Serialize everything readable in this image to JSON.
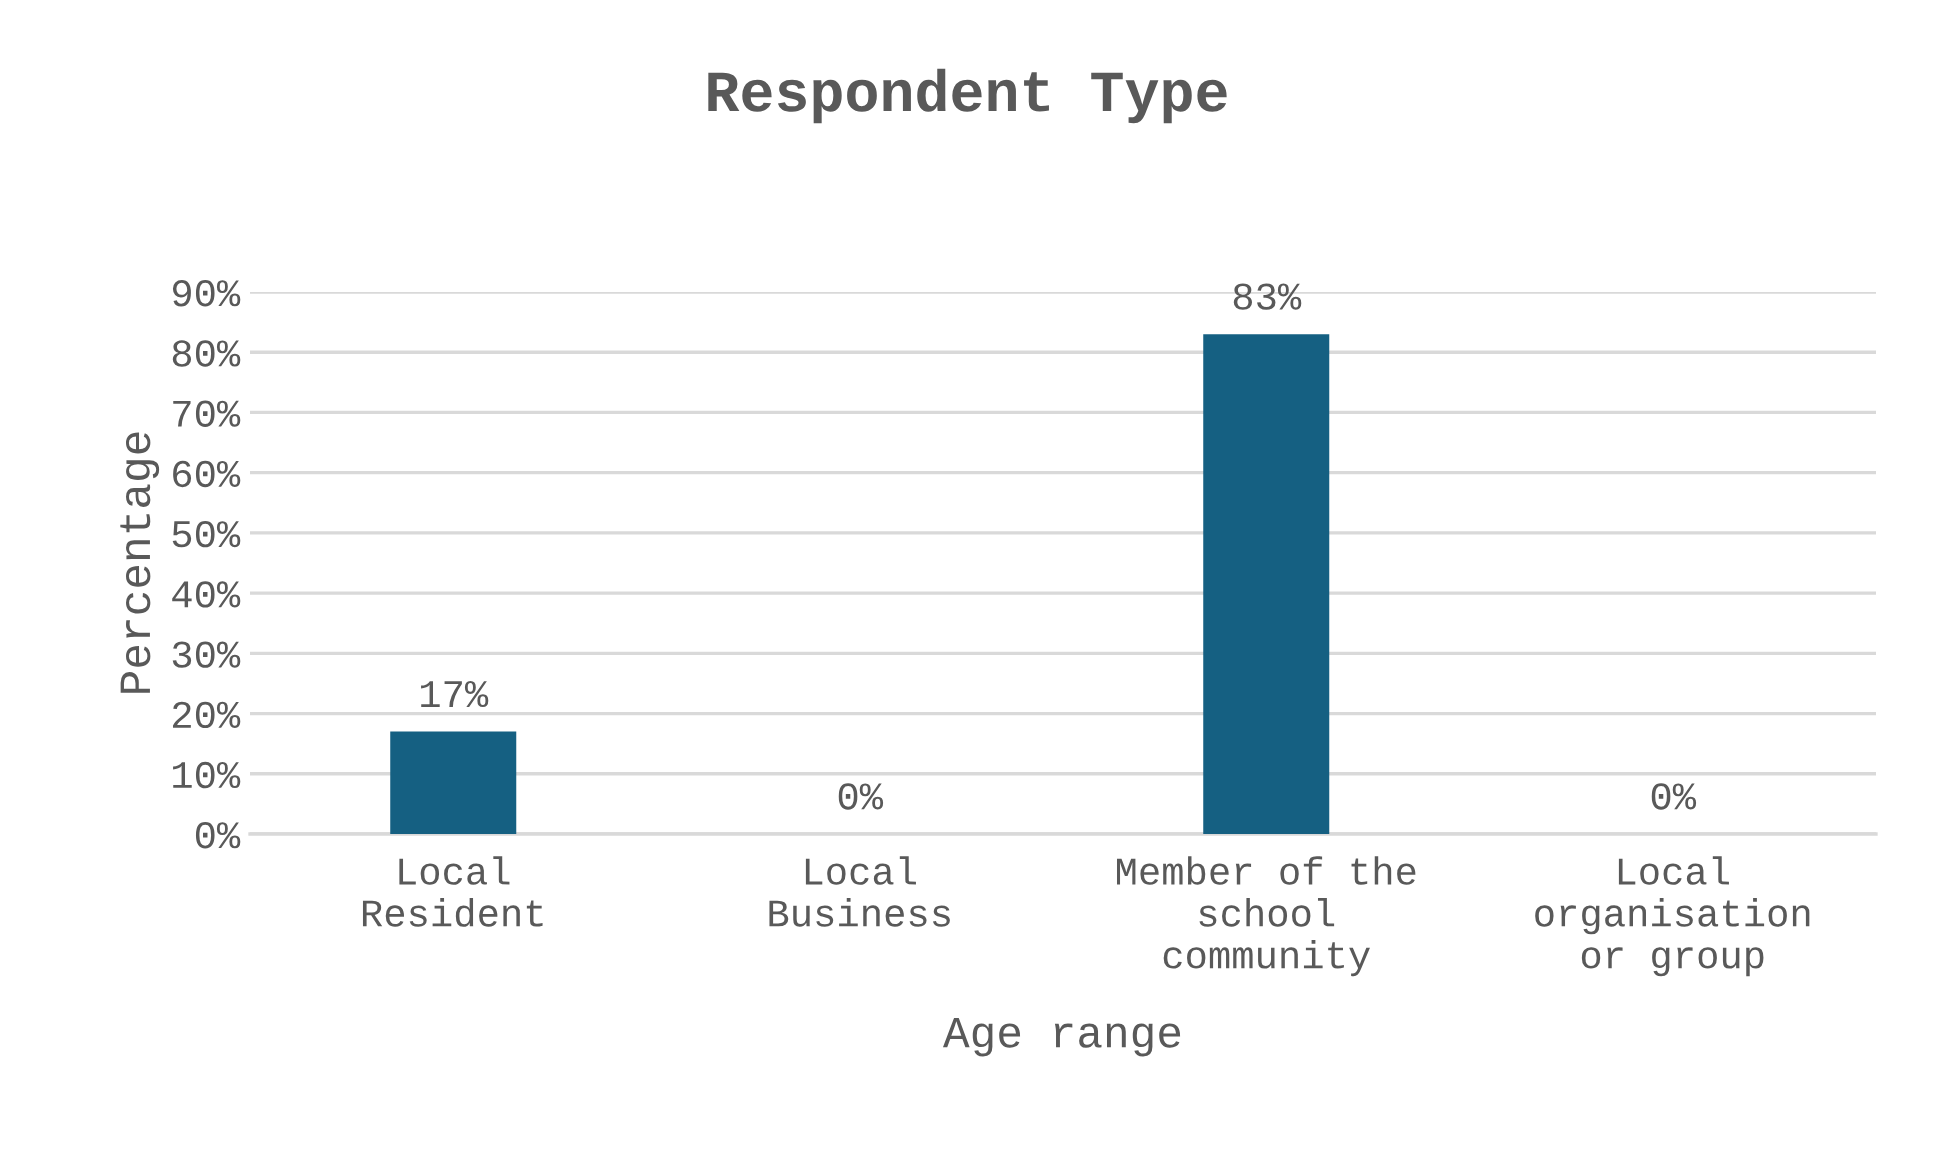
{
  "chart_data": {
    "type": "bar",
    "title": "Respondent Type",
    "xlabel": "Age range",
    "ylabel": "Percentage",
    "categories": [
      "Local\nResident",
      "Local\nBusiness",
      "Member of the\nschool\ncommunity",
      "Local\norganisation\nor group"
    ],
    "values": [
      17,
      0,
      83,
      0
    ],
    "color": "#156082",
    "value_labels": [
      "17%",
      "0%",
      "83%",
      "0%"
    ],
    "ylim": [
      0,
      90
    ],
    "yticks": [
      {
        "value": 0,
        "label": "0%"
      },
      {
        "value": 10,
        "label": "10%"
      },
      {
        "value": 20,
        "label": "20%"
      },
      {
        "value": 30,
        "label": "30%"
      },
      {
        "value": 40,
        "label": "40%"
      },
      {
        "value": 50,
        "label": "50%"
      },
      {
        "value": 60,
        "label": "60%"
      },
      {
        "value": 70,
        "label": "70%"
      },
      {
        "value": 80,
        "label": "80%"
      },
      {
        "value": 90,
        "label": "90%"
      }
    ],
    "grid": "y",
    "legend": false
  }
}
